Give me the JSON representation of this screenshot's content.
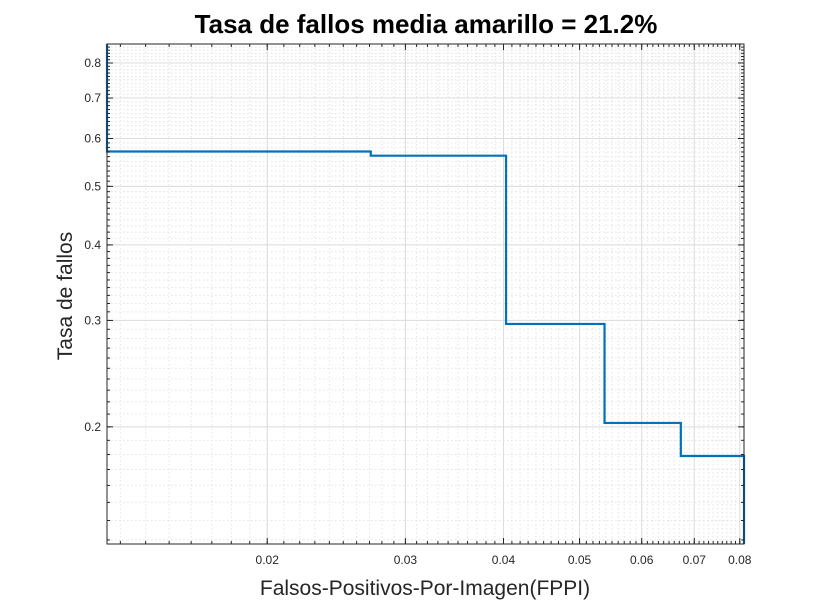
{
  "chart_data": {
    "type": "line",
    "title": "Tasa de fallos media amarillo = 21.2%",
    "xlabel": "Falsos-Positivos-Por-Imagen(FPPI)",
    "ylabel": "Tasa de fallos",
    "x_scale": "log",
    "y_scale": "log",
    "xlim": [
      0.0125,
      0.081
    ],
    "ylim": [
      0.128,
      0.86
    ],
    "x_ticks": [
      0.02,
      0.03,
      0.04,
      0.05,
      0.06,
      0.07,
      0.08
    ],
    "x_tick_labels": [
      "0.02",
      "0.03",
      "0.04",
      "0.05",
      "0.06",
      "0.07",
      "0.08"
    ],
    "y_ticks": [
      0.2,
      0.3,
      0.4,
      0.5,
      0.6,
      0.7,
      0.8
    ],
    "y_tick_labels": [
      "0.2",
      "0.3",
      "0.4",
      "0.5",
      "0.6",
      "0.7",
      "0.8"
    ],
    "grid": true,
    "line_color": "#0072bd",
    "series": [
      {
        "x": [
          0.0125,
          0.0125,
          0.0271,
          0.0271,
          0.0403,
          0.0403,
          0.0538,
          0.0538,
          0.0673,
          0.0673,
          0.081,
          0.081
        ],
        "y": [
          0.86,
          0.571,
          0.571,
          0.562,
          0.562,
          0.296,
          0.296,
          0.203,
          0.203,
          0.179,
          0.179,
          0.128
        ]
      }
    ]
  }
}
